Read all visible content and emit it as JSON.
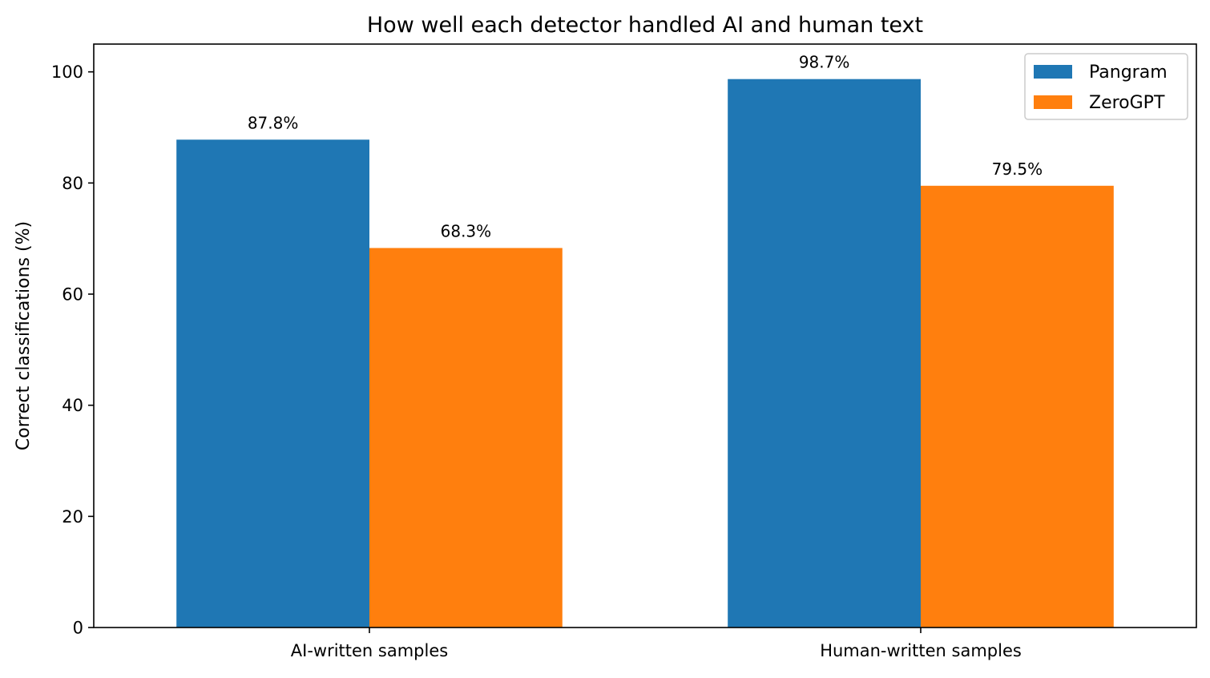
{
  "chart_data": {
    "type": "bar",
    "title": "How well each detector handled AI and human text",
    "xlabel": "",
    "ylabel": "Correct classifications (%)",
    "categories": [
      "AI-written samples",
      "Human-written samples"
    ],
    "series": [
      {
        "name": "Pangram",
        "values": [
          87.8,
          98.7
        ],
        "labels": [
          "87.8%",
          "98.7%"
        ],
        "color": "#1f77b4"
      },
      {
        "name": "ZeroGPT",
        "values": [
          68.3,
          79.5
        ],
        "labels": [
          "68.3%",
          "79.5%"
        ],
        "color": "#ff7f0e"
      }
    ],
    "ylim": [
      0,
      105
    ],
    "yticks": [
      0,
      20,
      40,
      60,
      80,
      100
    ],
    "grid": false,
    "legend_position": "top-right"
  }
}
